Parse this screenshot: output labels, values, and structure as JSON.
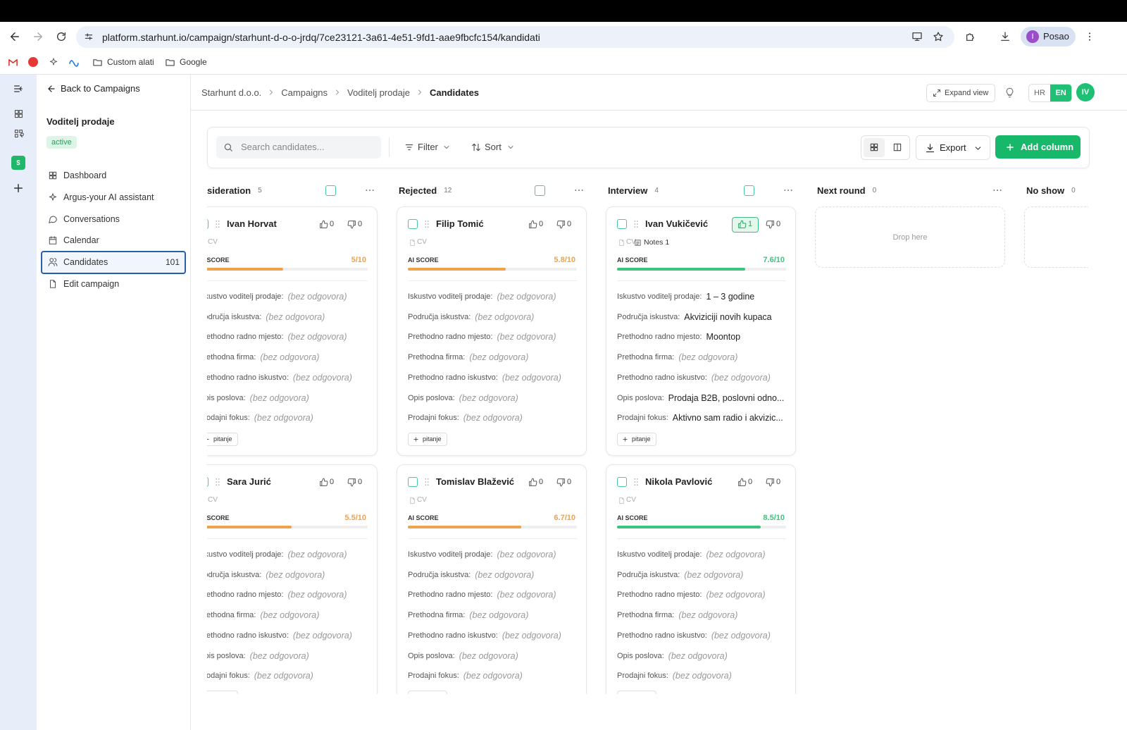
{
  "browser": {
    "url": "platform.starhunt.io/campaign/starhunt-d-o-o-jrdq/7ce23121-3a61-4e51-9fd1-aae9fbcfc154/kandidati",
    "profile_initial": "I",
    "profile_name": "Posao",
    "bookmarks": [
      "Custom alati",
      "Google"
    ]
  },
  "sidebar": {
    "back": "Back to Campaigns",
    "campaign": "Voditelj prodaje",
    "status": "active",
    "nav": [
      {
        "label": "Dashboard"
      },
      {
        "label": "Argus-your AI assistant"
      },
      {
        "label": "Conversations"
      },
      {
        "label": "Calendar"
      },
      {
        "label": "Candidates",
        "count": 101,
        "selected": true
      },
      {
        "label": "Edit campaign"
      }
    ]
  },
  "header": {
    "breadcrumbs": [
      "Starhunt d.o.o.",
      "Campaigns",
      "Voditelj prodaje",
      "Candidates"
    ],
    "expand": "Expand view",
    "languages": [
      "HR",
      "EN"
    ],
    "active_language": "EN",
    "avatar": "IV"
  },
  "toolbar": {
    "search_placeholder": "Search candidates...",
    "filter": "Filter",
    "sort": "Sort",
    "export": "Export",
    "add_column": "Add column"
  },
  "board": {
    "field_labels": [
      "Iskustvo voditelj prodaje:",
      "Područja iskustva:",
      "Prethodno radno mjesto:",
      "Prethodna firma:",
      "Prethodno radno iskustvo:",
      "Opis poslova:",
      "Prodajni fokus:"
    ],
    "no_answer": "(bez odgovora)",
    "cv": "CV",
    "score_title": "AI SCORE",
    "add_question": "pitanje",
    "drop_hint": "Drop here",
    "columns": [
      {
        "name": "sideration",
        "count": 5,
        "cards": [
          {
            "name": "Ivan Horvat",
            "likes": 0,
            "dislikes": 0,
            "score": 5,
            "score_label": "5/10",
            "answers": [
              null,
              null,
              null,
              null,
              null,
              null,
              null
            ]
          },
          {
            "name": "Sara Jurić",
            "likes": 0,
            "dislikes": 0,
            "score": 5.5,
            "score_label": "5.5/10",
            "answers": [
              null,
              null,
              null,
              null,
              null,
              null,
              null
            ]
          }
        ]
      },
      {
        "name": "Rejected",
        "count": 12,
        "cards": [
          {
            "name": "Filip Tomić",
            "likes": 0,
            "dislikes": 0,
            "score": 5.8,
            "score_label": "5.8/10",
            "answers": [
              null,
              null,
              null,
              null,
              null,
              null,
              null
            ]
          },
          {
            "name": "Tomislav Blažević",
            "likes": 0,
            "dislikes": 0,
            "score": 6.7,
            "score_label": "6.7/10",
            "answers": [
              null,
              null,
              null,
              null,
              null,
              null,
              null
            ]
          }
        ]
      },
      {
        "name": "Interview",
        "count": 4,
        "cards": [
          {
            "name": "Ivan Vukičević",
            "likes": 1,
            "dislikes": 0,
            "notes": "Notes 1",
            "score": 7.6,
            "score_label": "7.6/10",
            "answers": [
              "1 – 3 godine",
              "Akviziciji novih kupaca",
              "Moontop",
              null,
              null,
              "Prodaja B2B, poslovni odno...",
              "Aktivno sam radio i akvizic..."
            ]
          },
          {
            "name": "Nikola Pavlović",
            "likes": 0,
            "dislikes": 0,
            "score": 8.5,
            "score_label": "8.5/10",
            "answers": [
              null,
              null,
              null,
              null,
              null,
              null,
              null
            ]
          }
        ]
      },
      {
        "name": "Next round",
        "count": 0,
        "cards": []
      },
      {
        "name": "No show",
        "count": 0,
        "cards": []
      }
    ]
  }
}
